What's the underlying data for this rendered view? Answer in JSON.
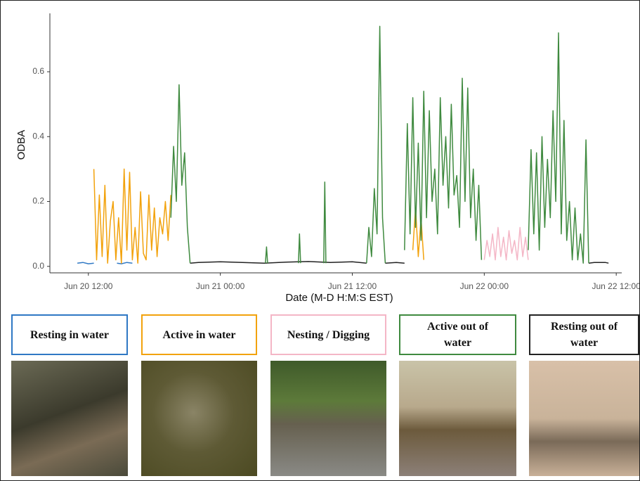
{
  "chart_data": {
    "type": "line",
    "y_label": "ODBA",
    "x_label": "Date (M-D H:M:S EST)",
    "xlim": [
      8.5,
      60.5
    ],
    "ylim": [
      -0.02,
      0.78
    ],
    "xticks": [
      {
        "value": 12,
        "label": "Jun 20 12:00"
      },
      {
        "value": 24,
        "label": "Jun 21 00:00"
      },
      {
        "value": 36,
        "label": "Jun 21 12:00"
      },
      {
        "value": 48,
        "label": "Jun 22 00:00"
      },
      {
        "value": 60,
        "label": "Jun 22 12:00"
      }
    ],
    "yticks": [
      {
        "value": 0,
        "label": "0.0"
      },
      0.2,
      0.4,
      0.6
    ],
    "series": [
      {
        "name": "Resting in water",
        "color": "#2f78c4",
        "x": [
          11,
          11.5,
          12,
          12.5,
          13,
          14.6,
          15,
          15.5,
          16
        ],
        "values": [
          0.01,
          0.012,
          0.008,
          0.01,
          null,
          0.01,
          0.008,
          0.012,
          0.01
        ]
      },
      {
        "name": "Active in water",
        "color": "#f2a20c",
        "x": [
          12.5,
          12.75,
          13,
          13.25,
          13.5,
          13.75,
          14,
          14.25,
          14.5,
          14.75,
          15,
          15.25,
          15.5,
          15.75,
          16,
          16.25,
          16.5,
          16.75,
          17,
          17.25,
          17.5,
          17.75,
          18,
          18.25,
          18.5,
          18.75,
          19,
          19.25,
          19.5,
          20,
          41.5,
          41.75,
          42,
          42.25,
          42.5
        ],
        "values": [
          0.3,
          0.02,
          0.22,
          0.03,
          0.25,
          0.01,
          0.14,
          0.2,
          0.02,
          0.15,
          0.01,
          0.3,
          0.05,
          0.29,
          0.02,
          0.12,
          0.01,
          0.23,
          0.04,
          0.02,
          0.22,
          0.05,
          0.18,
          0.03,
          0.15,
          0.1,
          0.2,
          0.08,
          0.22,
          null,
          0.05,
          0.18,
          0.03,
          0.15,
          0.02
        ]
      },
      {
        "name": "Nesting / Digging",
        "color": "#f4b6c6",
        "x": [
          48,
          48.25,
          48.5,
          48.75,
          49,
          49.25,
          49.5,
          49.75,
          50,
          50.25,
          50.5,
          50.75,
          51,
          51.25,
          51.5,
          51.75,
          52
        ],
        "values": [
          0.02,
          0.08,
          0.03,
          0.1,
          0.02,
          0.12,
          0.03,
          0.09,
          0.02,
          0.11,
          0.04,
          0.08,
          0.02,
          0.12,
          0.03,
          0.09,
          0.02
        ]
      },
      {
        "name": "Active out of water",
        "color": "#3f8a3f",
        "x": [
          19.5,
          19.75,
          20,
          20.25,
          20.5,
          20.75,
          21,
          21.25,
          22,
          28.1,
          28.2,
          28.3,
          29,
          31.1,
          31.2,
          31.3,
          32,
          33.4,
          33.5,
          33.6,
          34,
          37.3,
          37.5,
          37.75,
          38,
          38.25,
          38.5,
          38.75,
          39,
          40,
          40.75,
          41,
          41.25,
          41.5,
          41.75,
          42,
          42.25,
          42.5,
          42.75,
          43,
          43.25,
          43.5,
          43.75,
          44,
          44.25,
          44.5,
          44.75,
          45,
          45.25,
          45.5,
          45.75,
          46,
          46.25,
          46.5,
          46.75,
          47,
          47.25,
          47.5,
          47.75,
          48,
          52,
          52.25,
          52.5,
          52.75,
          53,
          53.25,
          53.5,
          53.75,
          54,
          54.25,
          54.5,
          54.75,
          55,
          55.25,
          55.5,
          55.75,
          56,
          56.25,
          56.5,
          56.75,
          57,
          57.25,
          57.5
        ],
        "values": [
          0.15,
          0.37,
          0.2,
          0.56,
          0.25,
          0.35,
          0.12,
          0.01,
          null,
          0.01,
          0.06,
          0.01,
          null,
          0.01,
          0.1,
          0.01,
          null,
          0.01,
          0.26,
          0.01,
          null,
          0.01,
          0.12,
          0.03,
          0.24,
          0.1,
          0.74,
          0.15,
          0.01,
          null,
          0.05,
          0.44,
          0.1,
          0.52,
          0.12,
          0.38,
          0.08,
          0.54,
          0.15,
          0.48,
          0.2,
          0.3,
          0.1,
          0.52,
          0.25,
          0.4,
          0.18,
          0.5,
          0.22,
          0.28,
          0.12,
          0.58,
          0.2,
          0.55,
          0.15,
          0.3,
          0.08,
          0.25,
          0.02,
          null,
          0.05,
          0.36,
          0.1,
          0.35,
          0.05,
          0.4,
          0.12,
          0.33,
          0.15,
          0.48,
          0.2,
          0.72,
          0.1,
          0.45,
          0.08,
          0.2,
          0.02,
          0.18,
          0.02,
          0.1,
          0.01,
          0.39,
          0.01
        ]
      },
      {
        "name": "Resting out of water",
        "color": "#222222",
        "x": [
          21.25,
          22,
          24,
          26,
          28,
          30,
          32,
          34,
          36,
          37.3,
          38,
          39,
          40,
          40.75,
          41,
          57.5,
          58,
          59,
          59.3
        ],
        "values": [
          0.01,
          0.012,
          0.014,
          0.012,
          0.01,
          0.013,
          0.015,
          0.012,
          0.014,
          0.01,
          null,
          0.01,
          0.012,
          0.01,
          null,
          0.01,
          0.012,
          0.012,
          0.01
        ]
      }
    ]
  }
}
